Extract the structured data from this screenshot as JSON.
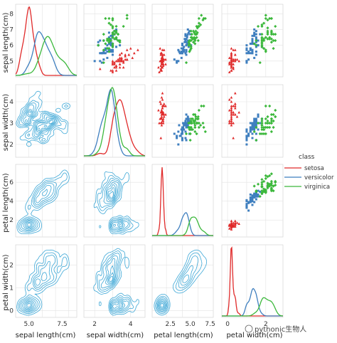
{
  "chart_data": {
    "type": "scatter",
    "variables": [
      "sepal length(cm)",
      "sepal width(cm)",
      "petal length(cm)",
      "petal width(cm)"
    ],
    "ticks": {
      "sepal length(cm)": [
        5,
        6,
        7,
        8
      ],
      "sepal width(cm)": [
        2,
        3,
        4
      ],
      "petal length(cm)": [
        2,
        4,
        6
      ],
      "petal width(cm)": [
        0,
        1,
        2
      ]
    },
    "x_tick_labels": {
      "sepal length(cm)": [
        "5.0",
        "7.5"
      ],
      "sepal width(cm)": [
        "2",
        "4"
      ],
      "petal length(cm)": [
        "2.5",
        "5.0",
        "7.5"
      ],
      "petal width(cm)": [
        "0",
        "2"
      ]
    },
    "ranges": {
      "sepal length(cm)": [
        4.0,
        8.6
      ],
      "sepal width(cm)": [
        1.4,
        4.8
      ],
      "petal length(cm)": [
        0.2,
        7.9
      ],
      "petal width(cm)": [
        -0.3,
        2.9
      ]
    },
    "legend": {
      "title": "class",
      "placement": "right",
      "entries": [
        {
          "name": "setosa",
          "color": "#e02a2a"
        },
        {
          "name": "versicolor",
          "color": "#3f7fbf"
        },
        {
          "name": "virginica",
          "color": "#3cb83c"
        }
      ]
    },
    "lower_panels": "kde-contour",
    "lower_color": "#3aa6d6",
    "diagonal_panels": "kde",
    "upper_panels": "scatter",
    "grid": true,
    "series": [
      {
        "name": "setosa",
        "sepal_length": [
          5.1,
          4.9,
          4.7,
          4.6,
          5.0,
          5.4,
          4.6,
          5.0,
          4.4,
          4.9,
          5.4,
          4.8,
          4.8,
          4.3,
          5.8,
          5.7,
          5.4,
          5.1,
          5.7,
          5.1,
          5.4,
          5.1,
          4.6,
          5.1,
          4.8,
          5.0,
          5.0,
          5.2,
          5.2,
          4.7,
          4.8,
          5.4,
          5.2,
          5.5,
          4.9,
          5.0,
          5.5,
          4.9,
          4.4,
          5.1,
          5.0,
          4.5,
          4.4,
          5.0,
          5.1,
          4.8,
          5.1,
          4.6,
          5.3,
          5.0
        ],
        "sepal_width": [
          3.5,
          3.0,
          3.2,
          3.1,
          3.6,
          3.9,
          3.4,
          3.4,
          2.9,
          3.1,
          3.7,
          3.4,
          3.0,
          3.0,
          4.0,
          4.4,
          3.9,
          3.5,
          3.8,
          3.8,
          3.4,
          3.7,
          3.6,
          3.3,
          3.4,
          3.0,
          3.4,
          3.5,
          3.4,
          3.2,
          3.1,
          3.4,
          4.1,
          4.2,
          3.1,
          3.2,
          3.5,
          3.6,
          3.0,
          3.4,
          3.5,
          2.3,
          3.2,
          3.5,
          3.8,
          3.0,
          3.8,
          3.2,
          3.7,
          3.3
        ],
        "petal_length": [
          1.4,
          1.4,
          1.3,
          1.5,
          1.4,
          1.7,
          1.4,
          1.5,
          1.4,
          1.5,
          1.5,
          1.6,
          1.4,
          1.1,
          1.2,
          1.5,
          1.3,
          1.4,
          1.7,
          1.5,
          1.7,
          1.5,
          1.0,
          1.7,
          1.9,
          1.6,
          1.6,
          1.5,
          1.4,
          1.6,
          1.6,
          1.5,
          1.5,
          1.4,
          1.5,
          1.2,
          1.3,
          1.4,
          1.3,
          1.5,
          1.3,
          1.3,
          1.3,
          1.6,
          1.9,
          1.4,
          1.6,
          1.4,
          1.5,
          1.4
        ],
        "petal_width": [
          0.2,
          0.2,
          0.2,
          0.2,
          0.2,
          0.4,
          0.3,
          0.2,
          0.2,
          0.1,
          0.2,
          0.2,
          0.1,
          0.1,
          0.2,
          0.4,
          0.4,
          0.3,
          0.3,
          0.3,
          0.2,
          0.4,
          0.2,
          0.5,
          0.2,
          0.2,
          0.4,
          0.2,
          0.2,
          0.2,
          0.2,
          0.4,
          0.1,
          0.2,
          0.2,
          0.2,
          0.2,
          0.1,
          0.2,
          0.2,
          0.3,
          0.3,
          0.2,
          0.6,
          0.4,
          0.3,
          0.2,
          0.2,
          0.2,
          0.2
        ]
      },
      {
        "name": "versicolor",
        "sepal_length": [
          7.0,
          6.4,
          6.9,
          5.5,
          6.5,
          5.7,
          6.3,
          4.9,
          6.6,
          5.2,
          5.0,
          5.9,
          6.0,
          6.1,
          5.6,
          6.7,
          5.6,
          5.8,
          6.2,
          5.6,
          5.9,
          6.1,
          6.3,
          6.1,
          6.4,
          6.6,
          6.8,
          6.7,
          6.0,
          5.7,
          5.5,
          5.5,
          5.8,
          6.0,
          5.4,
          6.0,
          6.7,
          6.3,
          5.6,
          5.5,
          5.5,
          6.1,
          5.8,
          5.0,
          5.6,
          5.7,
          5.7,
          6.2,
          5.1,
          5.7
        ],
        "sepal_width": [
          3.2,
          3.2,
          3.1,
          2.3,
          2.8,
          2.8,
          3.3,
          2.4,
          2.9,
          2.7,
          2.0,
          3.0,
          2.2,
          2.9,
          2.9,
          3.1,
          3.0,
          2.7,
          2.2,
          2.5,
          3.2,
          2.8,
          2.5,
          2.8,
          2.9,
          3.0,
          2.8,
          3.0,
          2.9,
          2.6,
          2.4,
          2.4,
          2.7,
          2.7,
          3.0,
          3.4,
          3.1,
          2.3,
          3.0,
          2.5,
          2.6,
          3.0,
          2.6,
          2.3,
          2.7,
          3.0,
          2.9,
          2.9,
          2.5,
          2.8
        ],
        "petal_length": [
          4.7,
          4.5,
          4.9,
          4.0,
          4.6,
          4.5,
          4.7,
          3.3,
          4.6,
          3.9,
          3.5,
          4.2,
          4.0,
          4.7,
          3.6,
          4.4,
          4.5,
          4.1,
          4.5,
          3.9,
          4.8,
          4.0,
          4.9,
          4.7,
          4.3,
          4.4,
          4.8,
          5.0,
          4.5,
          3.5,
          3.8,
          3.7,
          3.9,
          5.1,
          4.5,
          4.5,
          4.7,
          4.4,
          4.1,
          4.0,
          4.4,
          4.6,
          4.0,
          3.3,
          4.2,
          4.2,
          4.2,
          4.3,
          3.0,
          4.1
        ],
        "petal_width": [
          1.4,
          1.5,
          1.5,
          1.3,
          1.5,
          1.3,
          1.6,
          1.0,
          1.3,
          1.4,
          1.0,
          1.5,
          1.0,
          1.4,
          1.3,
          1.4,
          1.5,
          1.0,
          1.5,
          1.1,
          1.8,
          1.3,
          1.5,
          1.2,
          1.3,
          1.4,
          1.4,
          1.7,
          1.5,
          1.0,
          1.1,
          1.0,
          1.2,
          1.6,
          1.5,
          1.6,
          1.5,
          1.3,
          1.3,
          1.3,
          1.2,
          1.4,
          1.2,
          1.0,
          1.3,
          1.2,
          1.3,
          1.3,
          1.1,
          1.3
        ]
      },
      {
        "name": "virginica",
        "sepal_length": [
          6.3,
          5.8,
          7.1,
          6.3,
          6.5,
          7.6,
          4.9,
          7.3,
          6.7,
          7.2,
          6.5,
          6.4,
          6.8,
          5.7,
          5.8,
          6.4,
          6.5,
          7.7,
          7.7,
          6.0,
          6.9,
          5.6,
          7.7,
          6.3,
          6.7,
          7.2,
          6.2,
          6.1,
          6.4,
          7.2,
          7.4,
          7.9,
          6.4,
          6.3,
          6.1,
          7.7,
          6.3,
          6.4,
          6.0,
          6.9,
          6.7,
          6.9,
          5.8,
          6.8,
          6.7,
          6.7,
          6.3,
          6.5,
          6.2,
          5.9
        ],
        "sepal_width": [
          3.3,
          2.7,
          3.0,
          2.9,
          3.0,
          3.0,
          2.5,
          2.9,
          2.5,
          3.6,
          3.2,
          2.7,
          3.0,
          2.5,
          2.8,
          3.2,
          3.0,
          3.8,
          2.6,
          2.2,
          3.2,
          2.8,
          2.8,
          2.7,
          3.3,
          3.2,
          2.8,
          3.0,
          2.8,
          3.0,
          2.8,
          3.8,
          2.8,
          2.8,
          2.6,
          3.0,
          3.4,
          3.1,
          3.0,
          3.1,
          3.1,
          3.1,
          2.7,
          3.2,
          3.3,
          3.0,
          2.5,
          3.0,
          3.4,
          3.0
        ],
        "petal_length": [
          6.0,
          5.1,
          5.9,
          5.6,
          5.8,
          6.6,
          4.5,
          6.3,
          5.8,
          6.1,
          5.1,
          5.3,
          5.5,
          5.0,
          5.1,
          5.3,
          5.5,
          6.7,
          6.9,
          5.0,
          5.7,
          4.9,
          6.7,
          4.9,
          5.7,
          6.0,
          4.8,
          4.9,
          5.6,
          5.8,
          6.1,
          6.4,
          5.6,
          5.1,
          5.6,
          6.1,
          5.6,
          5.5,
          4.8,
          5.4,
          5.6,
          5.1,
          5.1,
          5.9,
          5.7,
          5.2,
          5.0,
          5.2,
          5.4,
          5.1
        ],
        "petal_width": [
          2.5,
          1.9,
          2.1,
          1.8,
          2.2,
          2.1,
          1.7,
          1.8,
          1.8,
          2.5,
          2.0,
          1.9,
          2.1,
          2.0,
          2.4,
          2.3,
          1.8,
          2.2,
          2.3,
          1.5,
          2.3,
          2.0,
          2.0,
          1.8,
          2.1,
          1.8,
          1.8,
          1.8,
          2.1,
          1.6,
          1.9,
          2.0,
          2.2,
          1.5,
          1.4,
          2.3,
          2.4,
          1.8,
          1.8,
          2.1,
          2.4,
          2.3,
          1.9,
          2.3,
          2.5,
          2.3,
          1.9,
          2.0,
          2.3,
          1.8
        ]
      }
    ]
  },
  "watermark": {
    "line1": "pythonic生物人",
    "line2": ""
  }
}
